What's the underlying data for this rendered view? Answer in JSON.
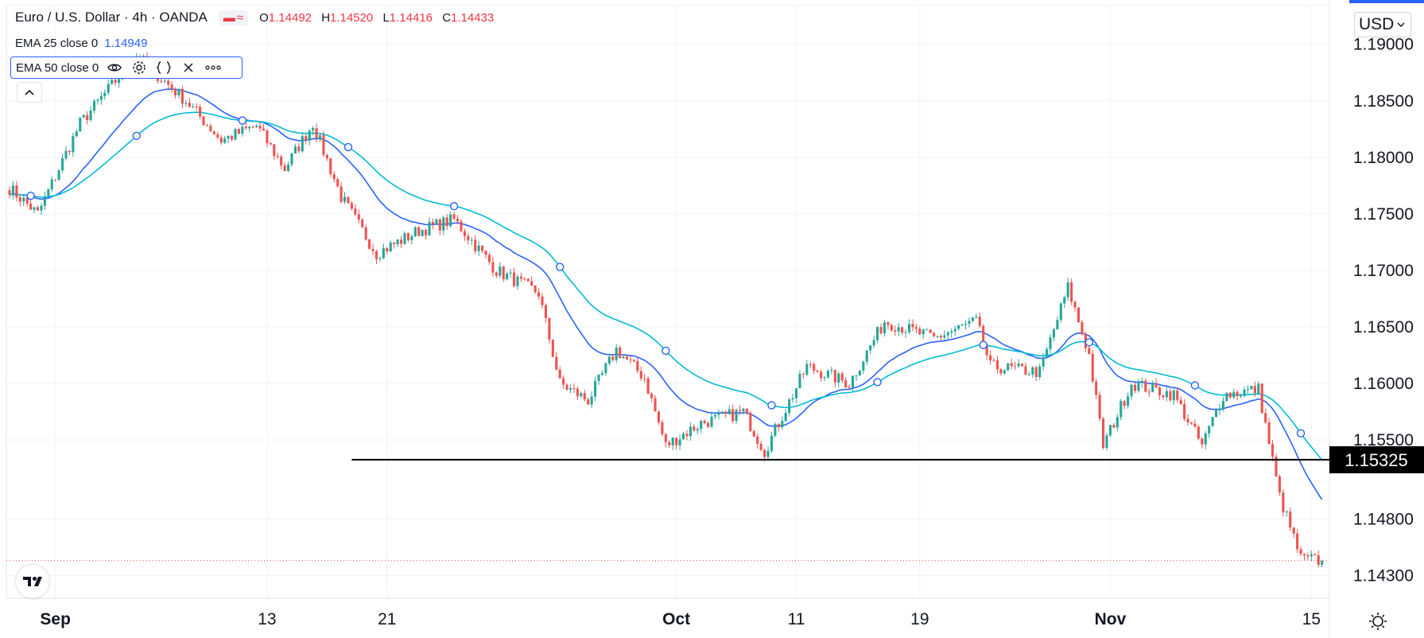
{
  "header": {
    "symbol": "Euro / U.S. Dollar",
    "interval": "4h",
    "exchange": "OANDA",
    "ohlc": [
      {
        "key": "O",
        "value": "1.14492"
      },
      {
        "key": "H",
        "value": "1.14520"
      },
      {
        "key": "L",
        "value": "1.14416"
      },
      {
        "key": "C",
        "value": "1.14433"
      }
    ]
  },
  "indicators": {
    "ema25": {
      "label": "EMA 25 close 0",
      "value": "1.14949"
    },
    "ema50": {
      "label": "EMA 50 close 0"
    }
  },
  "icons": {
    "visibility": "eye-icon",
    "settings": "gear-icon",
    "source": "braces-icon",
    "remove": "close-icon",
    "more": "more-icon",
    "collapse": "chevron-up-icon",
    "logo": "tradingview-logo-icon",
    "scale_settings": "sun-gear-icon"
  },
  "currency_selector": "USD",
  "colors": {
    "up": "#26a69a",
    "down": "#ef5350",
    "ema25": "#2962ff",
    "ema50": "#00bcd4",
    "support": "#000000",
    "accent": "#2962ff"
  },
  "chart_data": {
    "type": "candlestick",
    "title": "Euro / U.S. Dollar, 4h, OANDA",
    "xlabel": "",
    "ylabel": "",
    "ylim": [
      1.141,
      1.1935
    ],
    "y_ticks": [
      "1.19000",
      "1.18500",
      "1.18000",
      "1.17500",
      "1.17000",
      "1.16500",
      "1.16000",
      "1.15500",
      "1.14800",
      "1.14300"
    ],
    "x_ticks": [
      "Sep",
      "13",
      "21",
      "Oct",
      "11",
      "19",
      "Nov",
      "15"
    ],
    "x_tick_bars": [
      13,
      73,
      107,
      189,
      223,
      258,
      312,
      369
    ],
    "series": [
      {
        "name": "EURUSD",
        "type": "candlestick",
        "anchors": [
          {
            "bar": 0,
            "price": 1.1773
          },
          {
            "bar": 8,
            "price": 1.175
          },
          {
            "bar": 20,
            "price": 1.183
          },
          {
            "bar": 36,
            "price": 1.189
          },
          {
            "bar": 50,
            "price": 1.185
          },
          {
            "bar": 60,
            "price": 1.1815
          },
          {
            "bar": 70,
            "price": 1.1828
          },
          {
            "bar": 78,
            "price": 1.179
          },
          {
            "bar": 86,
            "price": 1.183
          },
          {
            "bar": 94,
            "price": 1.1765
          },
          {
            "bar": 104,
            "price": 1.1715
          },
          {
            "bar": 116,
            "price": 1.1735
          },
          {
            "bar": 126,
            "price": 1.1745
          },
          {
            "bar": 138,
            "price": 1.17
          },
          {
            "bar": 150,
            "price": 1.168
          },
          {
            "bar": 156,
            "price": 1.16
          },
          {
            "bar": 164,
            "price": 1.1585
          },
          {
            "bar": 172,
            "price": 1.163
          },
          {
            "bar": 180,
            "price": 1.1605
          },
          {
            "bar": 186,
            "price": 1.1545
          },
          {
            "bar": 196,
            "price": 1.1565
          },
          {
            "bar": 208,
            "price": 1.1575
          },
          {
            "bar": 214,
            "price": 1.154
          },
          {
            "bar": 226,
            "price": 1.1615
          },
          {
            "bar": 238,
            "price": 1.16
          },
          {
            "bar": 248,
            "price": 1.1655
          },
          {
            "bar": 262,
            "price": 1.164
          },
          {
            "bar": 274,
            "price": 1.1655
          },
          {
            "bar": 278,
            "price": 1.1615
          },
          {
            "bar": 292,
            "price": 1.161
          },
          {
            "bar": 300,
            "price": 1.1685
          },
          {
            "bar": 306,
            "price": 1.1625
          },
          {
            "bar": 310,
            "price": 1.1545
          },
          {
            "bar": 318,
            "price": 1.16
          },
          {
            "bar": 330,
            "price": 1.159
          },
          {
            "bar": 338,
            "price": 1.1545
          },
          {
            "bar": 344,
            "price": 1.159
          },
          {
            "bar": 354,
            "price": 1.1595
          },
          {
            "bar": 360,
            "price": 1.15
          },
          {
            "bar": 366,
            "price": 1.1445
          },
          {
            "bar": 372,
            "price": 1.1443
          }
        ]
      },
      {
        "name": "EMA 25 close 0",
        "type": "line",
        "last_value": 1.14949
      },
      {
        "name": "EMA 50 close 0",
        "type": "line"
      }
    ],
    "support_level": {
      "label": "1.15325",
      "price": 1.15325,
      "start_bar": 97
    },
    "last_price": 1.14433,
    "visible_bars": 372
  }
}
